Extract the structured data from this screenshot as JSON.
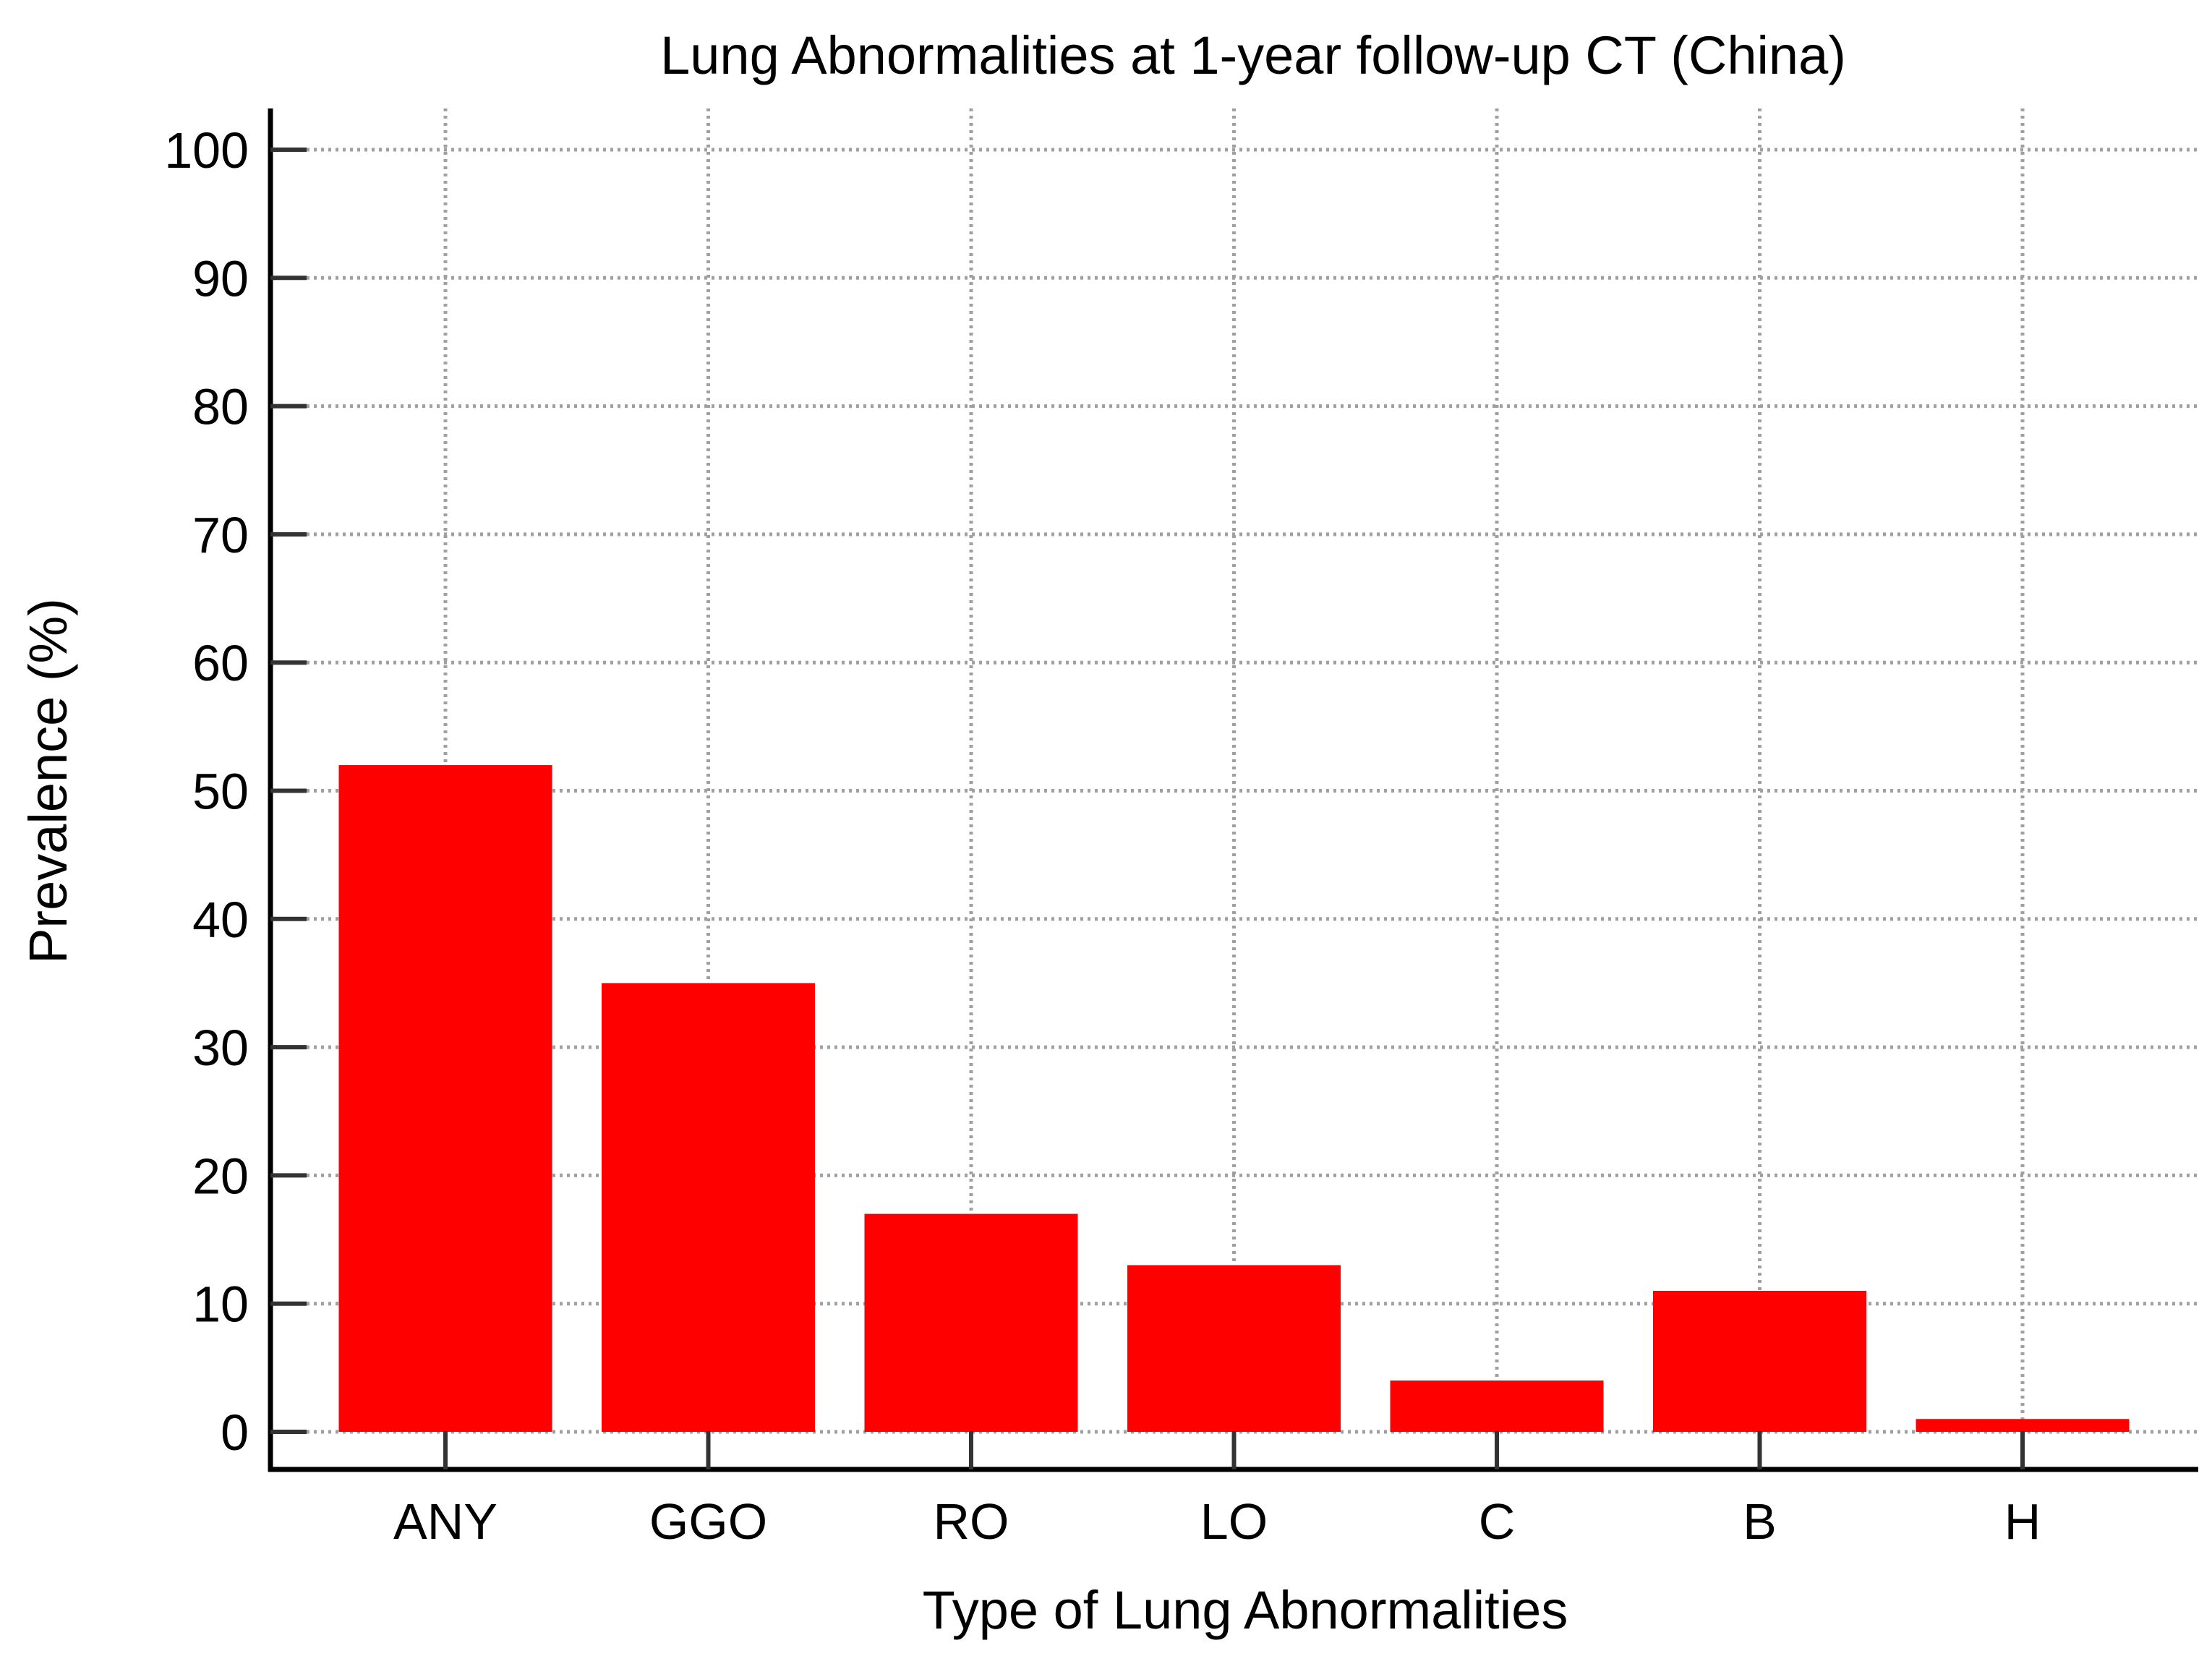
{
  "chart_data": {
    "type": "bar",
    "title": "Lung Abnormalities at 1-year follow-up CT (China)",
    "xlabel": "Type of Lung Abnormalities",
    "ylabel": "Prevalence (%)",
    "categories": [
      "ANY",
      "GGO",
      "RO",
      "LO",
      "C",
      "B",
      "H"
    ],
    "values": [
      52,
      35,
      17,
      13,
      4,
      11,
      1
    ],
    "ylim": [
      0,
      100
    ],
    "yticks": [
      "0",
      "10",
      "20",
      "30",
      "40",
      "50",
      "60",
      "70",
      "80",
      "90",
      "100"
    ],
    "grid": true,
    "bar_color": "#ff0000",
    "grid_color": "#a0a0a0",
    "axis_color": "#000000"
  }
}
